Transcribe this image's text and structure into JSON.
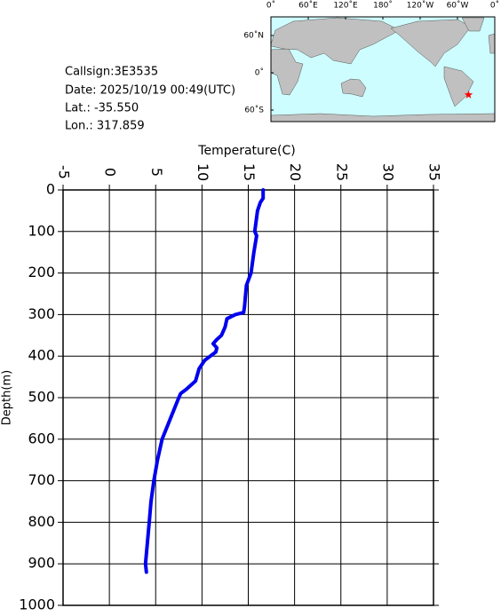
{
  "info": [
    "Callsign:3E3535",
    "Date:  2025/10/19 00:49(UTC)",
    "Lat.:  -35.550",
    "Lon.:  317.859"
  ],
  "map": {
    "lonlim": [
      0,
      360
    ],
    "latlim": [
      -78,
      90
    ],
    "station": {
      "lon": 317.859,
      "lat": -35.55,
      "color": "#ff0000"
    },
    "lonticks": [
      {
        "value": 0,
        "label": "0˚"
      },
      {
        "value": 60,
        "label": "60˚E"
      },
      {
        "value": 120,
        "label": "120˚E"
      },
      {
        "value": 180,
        "label": "180˚"
      },
      {
        "value": 240,
        "label": "120˚W"
      },
      {
        "value": 300,
        "label": "60˚W"
      },
      {
        "value": 360,
        "label": "0˚"
      }
    ],
    "latticks": [
      {
        "value": 60,
        "label": "60˚N"
      },
      {
        "value": 0,
        "label": "0˚"
      },
      {
        "value": -60,
        "label": "60˚S"
      }
    ]
  },
  "chart_data": {
    "type": "line",
    "x_label": "Temperature(C)",
    "y_label": "Depth(m)",
    "xlim": [
      -5,
      35
    ],
    "xticks": [
      -5,
      0,
      5,
      10,
      15,
      20,
      25,
      30,
      35
    ],
    "ylim": [
      0,
      1000
    ],
    "y_inverted": true,
    "yticks": [
      0,
      100,
      200,
      300,
      400,
      500,
      600,
      700,
      800,
      900,
      1000
    ],
    "grid": true,
    "series": [
      {
        "color": "#0000ee",
        "x": [
          16.6,
          16.6,
          16.3,
          16.0,
          15.7,
          15.9,
          15.6,
          15.3,
          14.8,
          14.6,
          14.5,
          13.6,
          12.7,
          12.5,
          12.1,
          11.6,
          11.2,
          11.6,
          11.5,
          10.9,
          10.3,
          9.7,
          9.3,
          8.3,
          7.7,
          7.5,
          6.6,
          5.7,
          5.2,
          4.8,
          4.5,
          4.3,
          4.1,
          3.9,
          4.0
        ],
        "values": [
          0,
          20,
          30,
          50,
          100,
          110,
          150,
          200,
          230,
          280,
          295,
          300,
          310,
          330,
          350,
          360,
          370,
          380,
          390,
          400,
          410,
          430,
          460,
          480,
          490,
          500,
          550,
          600,
          650,
          700,
          750,
          800,
          850,
          900,
          920
        ]
      }
    ]
  }
}
